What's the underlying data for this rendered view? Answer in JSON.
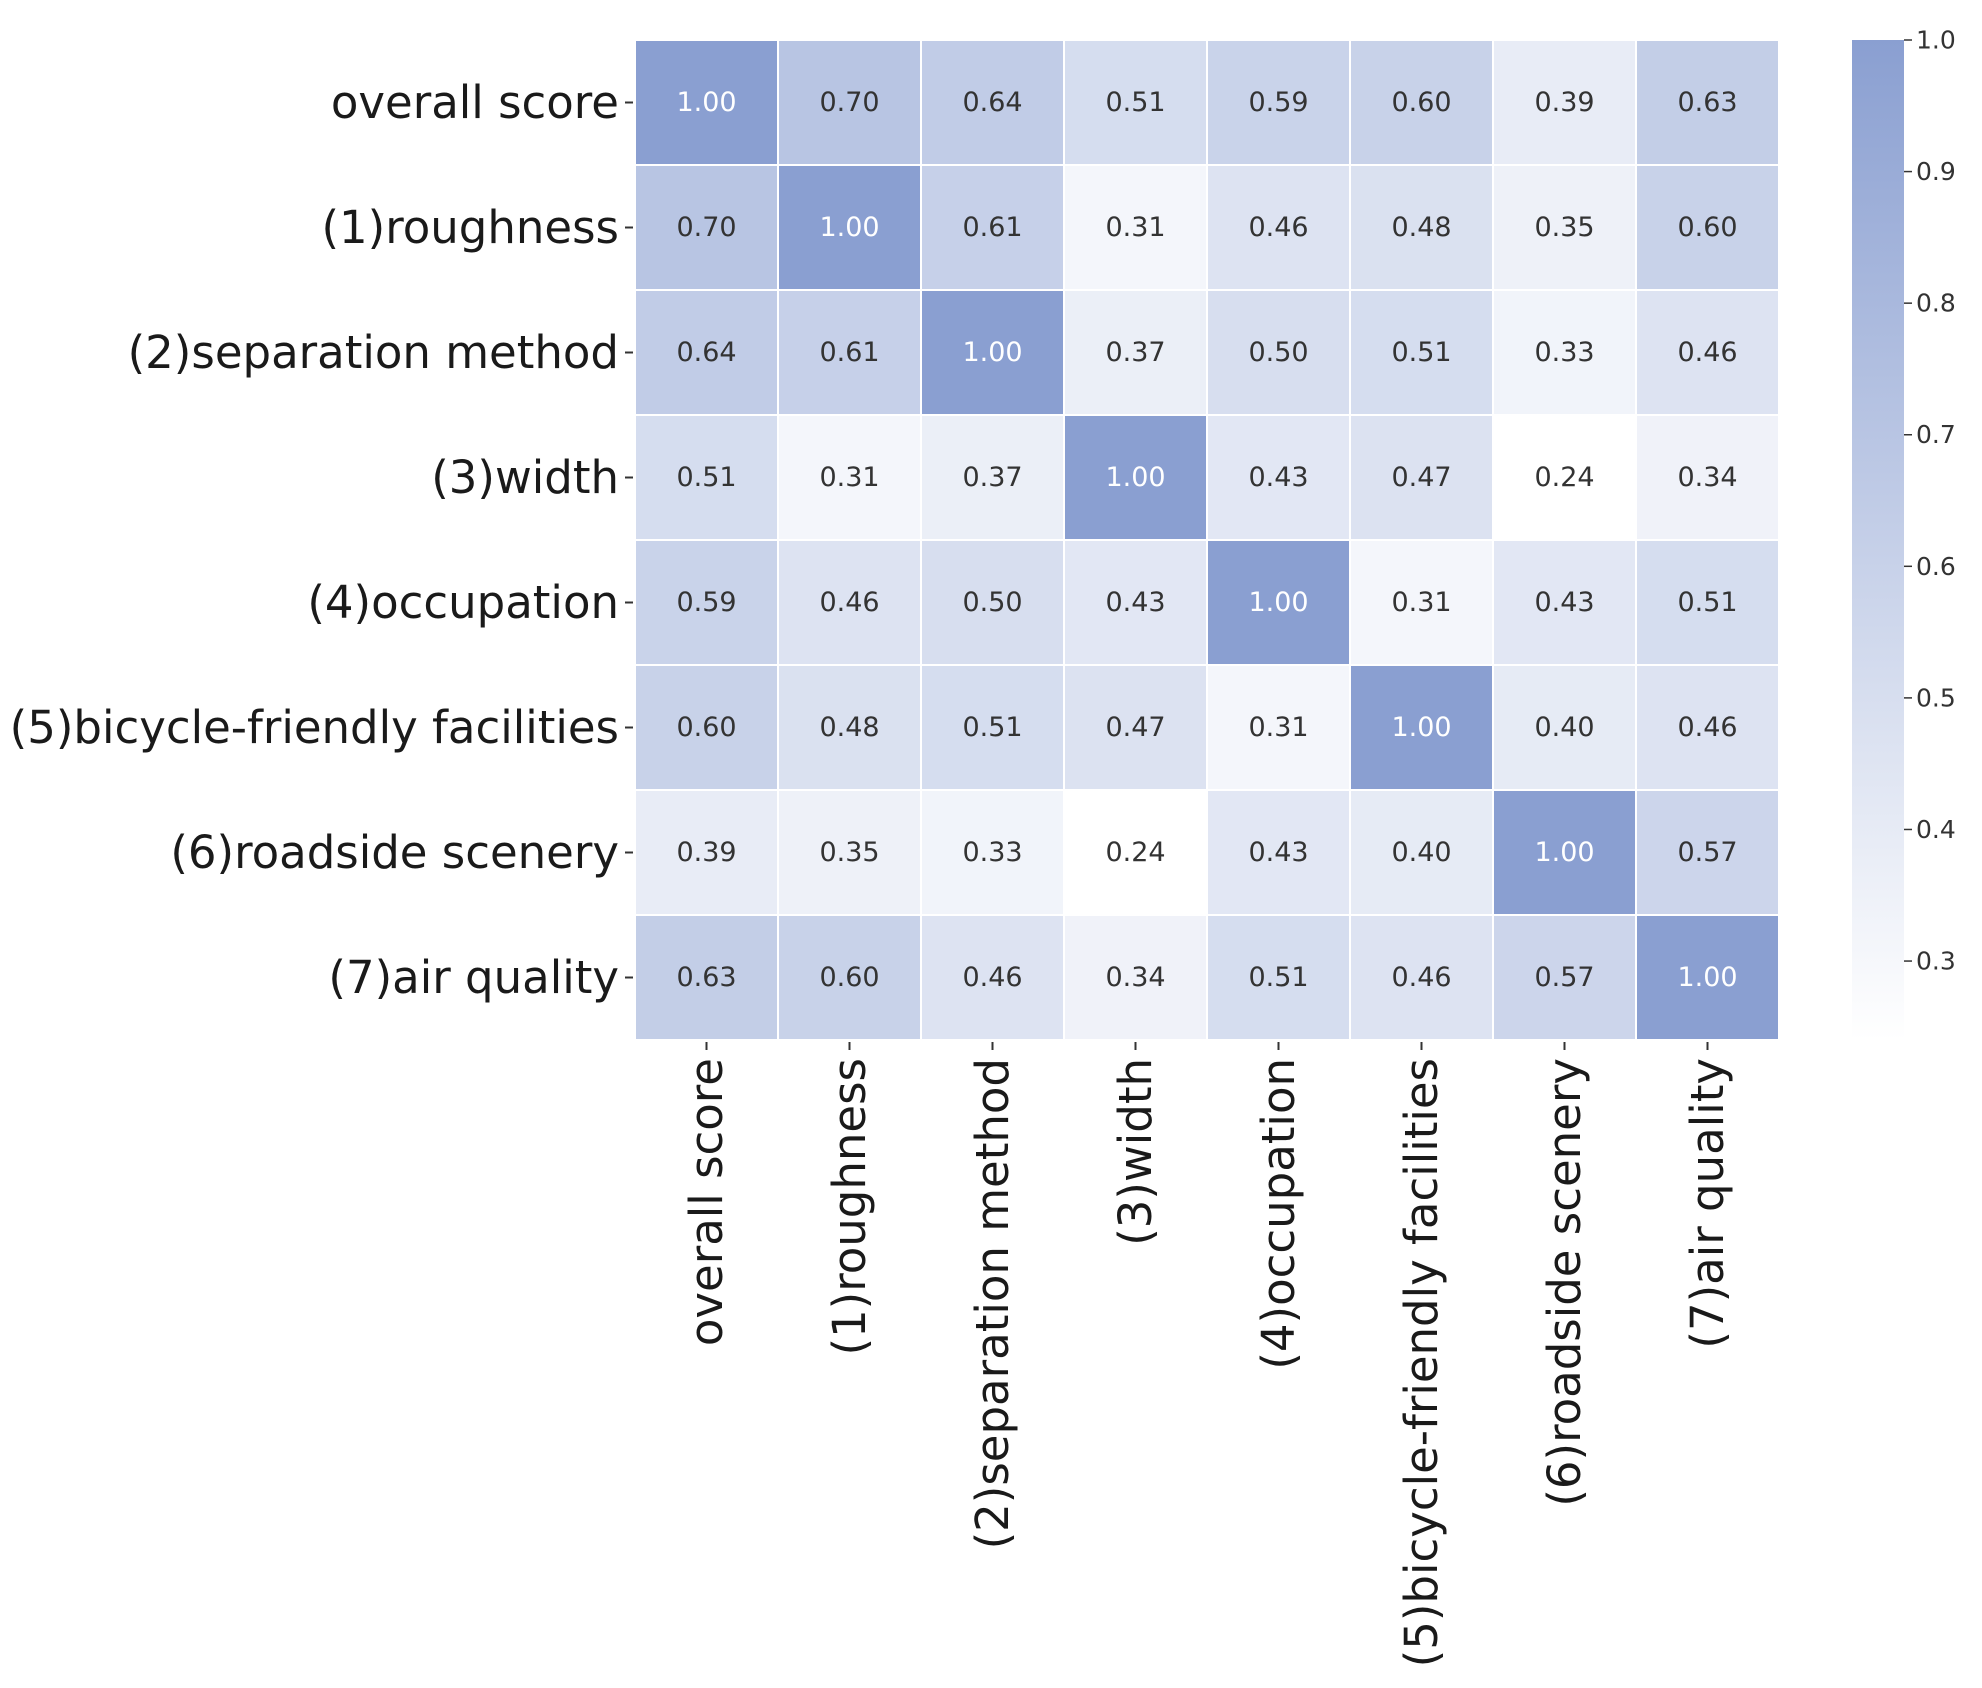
{
  "chart_data": {
    "type": "heatmap",
    "rows": [
      "overall score",
      "(1)roughness",
      "(2)separation method",
      "(3)width",
      "(4)occupation",
      "(5)bicycle-friendly facilities",
      "(6)roadside scenery",
      "(7)air quality"
    ],
    "columns": [
      "overall score",
      "(1)roughness",
      "(2)separation method",
      "(3)width",
      "(4)occupation",
      "(5)bicycle-friendly facilities",
      "(6)roadside scenery",
      "(7)air quality"
    ],
    "values": [
      [
        1.0,
        0.7,
        0.64,
        0.51,
        0.59,
        0.6,
        0.39,
        0.63
      ],
      [
        0.7,
        1.0,
        0.61,
        0.31,
        0.46,
        0.48,
        0.35,
        0.6
      ],
      [
        0.64,
        0.61,
        1.0,
        0.37,
        0.5,
        0.51,
        0.33,
        0.46
      ],
      [
        0.51,
        0.31,
        0.37,
        1.0,
        0.43,
        0.47,
        0.24,
        0.34
      ],
      [
        0.59,
        0.46,
        0.5,
        0.43,
        1.0,
        0.31,
        0.43,
        0.51
      ],
      [
        0.6,
        0.48,
        0.51,
        0.47,
        0.31,
        1.0,
        0.4,
        0.46
      ],
      [
        0.39,
        0.35,
        0.33,
        0.24,
        0.43,
        0.4,
        1.0,
        0.57
      ],
      [
        0.63,
        0.6,
        0.46,
        0.34,
        0.51,
        0.46,
        0.57,
        1.0
      ]
    ],
    "value_format": "2 decimals",
    "colorbar": {
      "range": [
        0.24,
        1.0
      ],
      "ticks": [
        1.0,
        0.9,
        0.8,
        0.7,
        0.6,
        0.5,
        0.4,
        0.3
      ],
      "tick_labels": [
        "1.0",
        "0.9",
        "0.8",
        "0.7",
        "0.6",
        "0.5",
        "0.4",
        "0.3"
      ]
    },
    "colormap": {
      "low": "#ffffff",
      "high": "#8a9fd1"
    },
    "cell_border_color": "#ffffff",
    "text_color_dark": "#333333",
    "text_color_light": "#ffffff",
    "title": "",
    "xlabel": "",
    "ylabel": ""
  }
}
